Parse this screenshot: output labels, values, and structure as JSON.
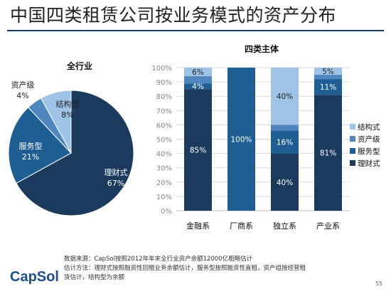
{
  "page": {
    "title": "中国四类租赁公司按业务模式的资产分布",
    "footnote_1": "数据来源：CapSol按照2012年年末全行业资产余额12000亿粗略估计",
    "footnote_2": "估计方法：理财式按照融资性回租业务余额估计，服务型按照融资性直租，资产组按经营租",
    "footnote_3": "赁估计，结构型为余额",
    "logo": "CapSol",
    "page_number": "55"
  },
  "colors": {
    "理财式": "#1b3a5e",
    "服务型": "#1f5e93",
    "资产级": "#4f86bd",
    "结构式": "#9dc3e6"
  },
  "chart_data": [
    {
      "type": "pie",
      "title": "全行业",
      "slices": [
        {
          "label": "理财式",
          "value": 67,
          "display": "67%"
        },
        {
          "label": "服务型",
          "value": 21,
          "display": "21%"
        },
        {
          "label": "资产级",
          "value": 4,
          "display": "4%"
        },
        {
          "label": "结构型",
          "value": 8,
          "display": "8%"
        }
      ]
    },
    {
      "type": "bar",
      "stacked": true,
      "title": "四类主体",
      "categories": [
        "金融系",
        "厂商系",
        "独立系",
        "产业系"
      ],
      "ylim": [
        0,
        100
      ],
      "yticks": [
        "0%",
        "10%",
        "20%",
        "30%",
        "40%",
        "50%",
        "60%",
        "70%",
        "80%",
        "90%",
        "100%"
      ],
      "grid": true,
      "legend_position": "right",
      "series": [
        {
          "name": "理财式",
          "values": [
            85,
            0,
            40,
            81
          ],
          "labels": [
            "85%",
            "0%",
            "40%",
            "81%"
          ]
        },
        {
          "name": "服务型",
          "values": [
            4,
            100,
            16,
            11
          ],
          "labels": [
            "4%",
            "100%",
            "16%",
            "11%"
          ]
        },
        {
          "name": "资产级",
          "values": [
            5,
            0,
            4,
            3
          ],
          "labels": [
            "",
            "",
            "",
            ""
          ]
        },
        {
          "name": "结构式",
          "values": [
            6,
            0,
            40,
            5
          ],
          "labels": [
            "6%",
            "",
            "40%",
            "5%"
          ]
        }
      ],
      "legend_order": [
        "结构式",
        "资产级",
        "服务型",
        "理财式"
      ]
    }
  ]
}
